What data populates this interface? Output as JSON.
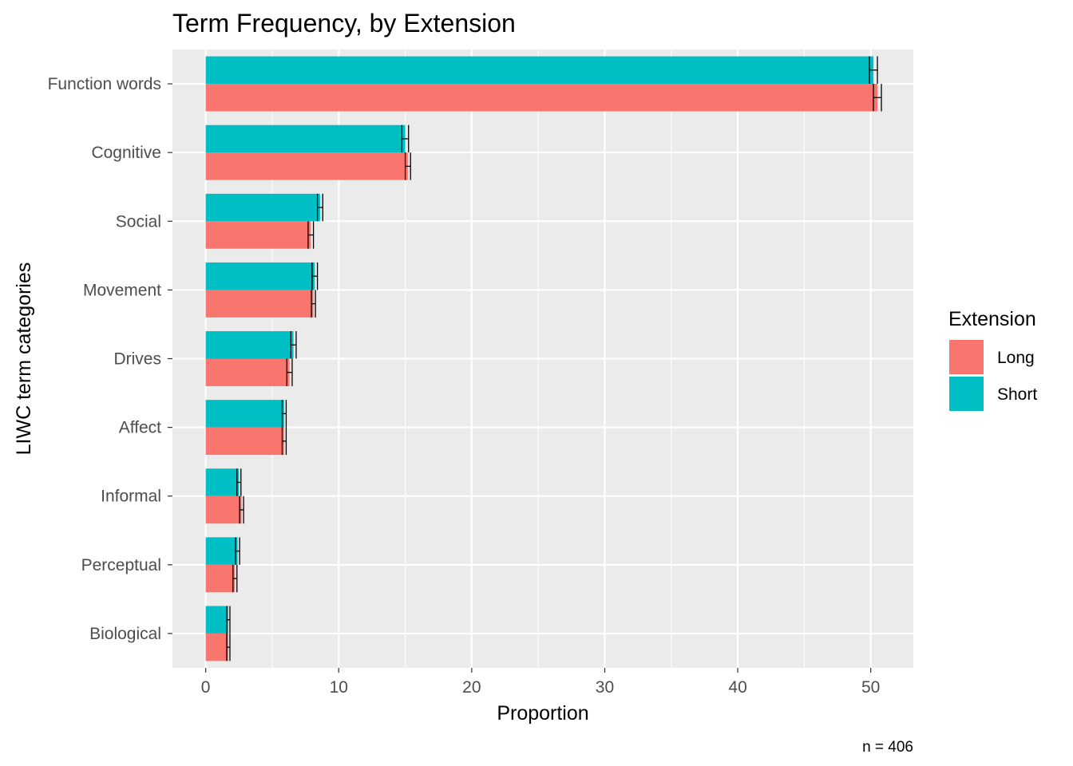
{
  "chart_data": {
    "type": "bar",
    "orientation": "horizontal",
    "title": "Term Frequency, by Extension",
    "xlabel": "Proportion",
    "ylabel": "LIWC term categories",
    "caption": "n = 406",
    "categories": [
      "Function words",
      "Cognitive",
      "Social",
      "Movement",
      "Drives",
      "Affect",
      "Informal",
      "Perceptual",
      "Biological"
    ],
    "xlim": [
      -2.5,
      53.2
    ],
    "xticks": [
      0,
      10,
      20,
      30,
      40,
      50
    ],
    "grid": true,
    "legend": {
      "title": "Extension",
      "position": "right"
    },
    "series": [
      {
        "name": "Long",
        "color": "#F8766D",
        "values": [
          50.5,
          15.2,
          7.9,
          8.1,
          6.3,
          5.9,
          2.7,
          2.2,
          1.7
        ],
        "error": [
          0.3,
          0.2,
          0.2,
          0.15,
          0.2,
          0.15,
          0.15,
          0.15,
          0.12
        ]
      },
      {
        "name": "Short",
        "color": "#00BFC4",
        "values": [
          50.2,
          15.0,
          8.6,
          8.2,
          6.6,
          5.9,
          2.5,
          2.4,
          1.7
        ],
        "error": [
          0.3,
          0.25,
          0.2,
          0.2,
          0.2,
          0.15,
          0.15,
          0.15,
          0.12
        ]
      }
    ]
  }
}
